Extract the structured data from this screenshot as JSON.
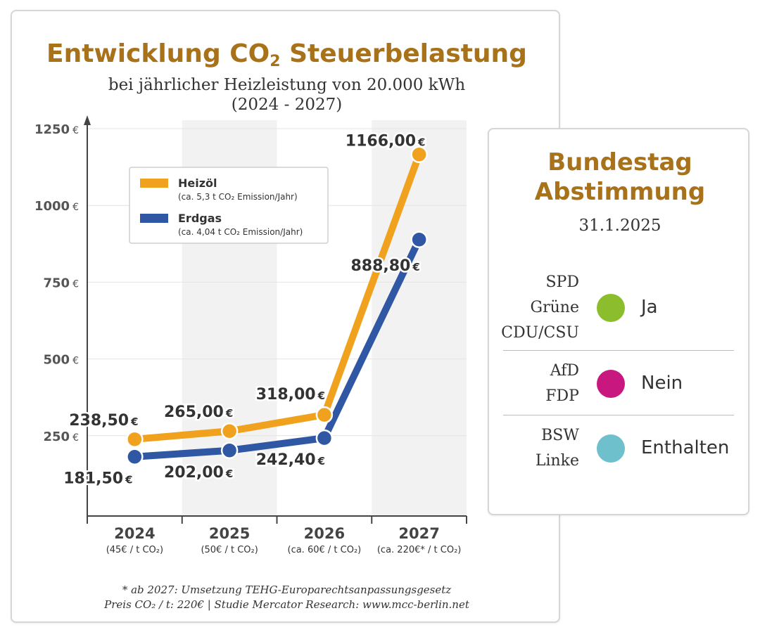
{
  "header": {
    "title_main": "Entwicklung CO",
    "title_sub": "2",
    "title_rest": " Steuerbelastung",
    "subtitle_line1": "bei jährlicher Heizleistung von 20.000 kWh",
    "subtitle_line2": "(2024 - 2027)"
  },
  "chart_data": {
    "type": "line",
    "categories": [
      "2024",
      "2025",
      "2026",
      "2027"
    ],
    "category_notes": [
      "(45€ / t CO₂)",
      "(50€ / t CO₂)",
      "(ca. 60€ / t CO₂)",
      "(ca. 220€* / t CO₂)"
    ],
    "ylim": [
      0,
      1250
    ],
    "yticks": [
      250,
      500,
      750,
      1000,
      1250
    ],
    "ytick_labels": [
      "250",
      "500",
      "750",
      "1000",
      "1250"
    ],
    "ytick_unit": "€",
    "series": [
      {
        "name": "Heizöl",
        "note": "(ca. 5,3 t CO₂ Emission/Jahr)",
        "color": "#f0a21e",
        "values": [
          238.5,
          265.0,
          318.0,
          1166.0
        ],
        "labels": [
          "238,50",
          "265,00",
          "318,00",
          "1166,00"
        ]
      },
      {
        "name": "Erdgas",
        "note": "(ca. 4,04 t CO₂ Emission/Jahr)",
        "color": "#2f57a4",
        "values": [
          181.5,
          202.0,
          242.4,
          888.8
        ],
        "labels": [
          "181,50",
          "202,00",
          "242,40",
          "888,80"
        ]
      }
    ],
    "value_unit": "€",
    "legend_position": "top-left",
    "shaded_columns": [
      "2025",
      "2027"
    ],
    "grid": true
  },
  "footnotes": {
    "line1": "* ab 2027: Umsetzung  TEHG-Europarechtsanpassungsgesetz",
    "line2": "Preis CO₂ / t: 220€  |  Studie Mercator Research: www.mcc-berlin.net"
  },
  "vote": {
    "title_line1": "Bundestag",
    "title_line2": "Abstimmung",
    "date": "31.1.2025",
    "groups": [
      {
        "parties": [
          "SPD",
          "Grüne",
          "CDU/CSU"
        ],
        "label": "Ja",
        "color": "#8cbd2c"
      },
      {
        "parties": [
          "AfD",
          "FDP"
        ],
        "label": "Nein",
        "color": "#c8187f"
      },
      {
        "parties": [
          "BSW",
          "Linke"
        ],
        "label": "Enthalten",
        "color": "#6ec0cc"
      }
    ]
  }
}
